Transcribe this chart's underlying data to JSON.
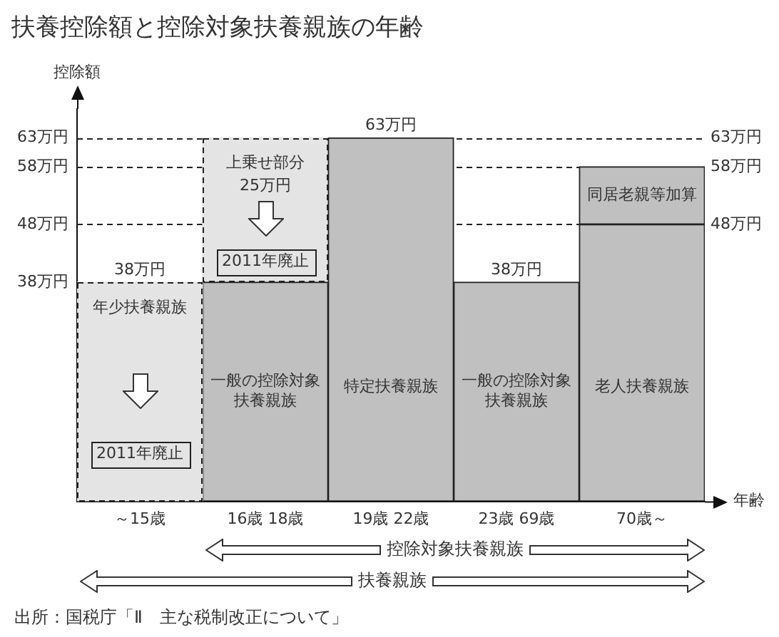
{
  "chart_data": {
    "type": "bar",
    "title": "扶養控除額と控除対象扶養親族の年齢",
    "xlabel": "年齢",
    "ylabel": "控除額",
    "categories": [
      "～15歳",
      "16歳 18歳",
      "19歳 22歳",
      "23歳 69歳",
      "70歳～"
    ],
    "stacked": true,
    "series": [
      {
        "name": "年少扶養親族",
        "color": "#e4e4e4",
        "values": [
          38,
          null,
          null,
          null,
          null
        ],
        "value_labels": [
          "38万円",
          null,
          null,
          null,
          null
        ],
        "line_style": "dashed"
      },
      {
        "name": "一般の控除対象扶養親族",
        "color": "#c0c0c0",
        "values": [
          null,
          38,
          null,
          38,
          null
        ],
        "value_labels": [
          null,
          null,
          null,
          "38万円",
          null
        ]
      },
      {
        "name": "特定扶養親族",
        "color": "#c0c0c0",
        "values": [
          null,
          null,
          63,
          null,
          null
        ],
        "value_labels": [
          null,
          null,
          "63万円",
          null,
          null
        ]
      },
      {
        "name": "老人扶養親族",
        "color": "#c0c0c0",
        "values": [
          null,
          null,
          null,
          null,
          48
        ]
      },
      {
        "name": "上乗せ部分",
        "color": "#e4e4e4",
        "values": [
          null,
          25,
          null,
          null,
          null
        ],
        "value_labels": [
          null,
          "25万円",
          null,
          null,
          null
        ],
        "line_style": "dashed"
      },
      {
        "name": "同居老親等加算",
        "color": "#c0c0c0",
        "values": [
          null,
          null,
          null,
          null,
          10
        ]
      }
    ],
    "ylim": [
      0,
      68
    ],
    "yticks": [
      {
        "value": 38,
        "label": "38万円"
      },
      {
        "value": 48,
        "label": "48万円"
      },
      {
        "value": 58,
        "label": "58万円"
      },
      {
        "value": 63,
        "label": "63万円"
      }
    ],
    "ref_lines": [
      {
        "axis": "y",
        "value": 63,
        "label": "63万円",
        "line_style": "dashed"
      },
      {
        "axis": "y",
        "value": 58,
        "label": "58万円",
        "line_style": "dashed"
      },
      {
        "axis": "y",
        "value": 48,
        "label": "48万円",
        "line_style": "dashed"
      }
    ],
    "annotations": [
      "2011年廃止",
      "2011年廃止",
      "控除対象扶養親族",
      "扶養親族",
      "出所：国税庁「Ⅱ　主な税制改正について」"
    ],
    "grid": false,
    "legend": false
  }
}
